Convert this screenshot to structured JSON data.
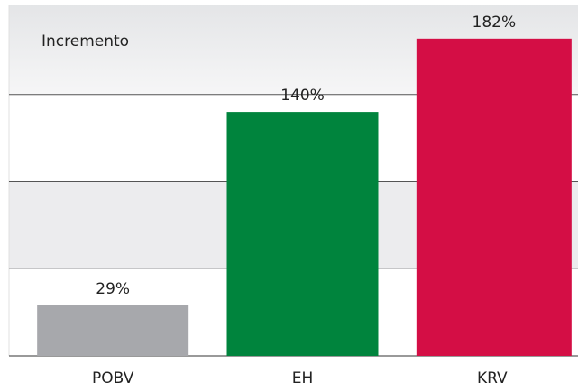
{
  "chart_data": {
    "type": "bar",
    "annotation": "Incremento",
    "categories": [
      "POBV",
      "EH",
      "KRV"
    ],
    "values": [
      29,
      140,
      182
    ],
    "value_labels": [
      "29%",
      "140%",
      "182%"
    ],
    "colors": [
      "#a7a8ac",
      "#00843d",
      "#d40e45"
    ],
    "ylim": [
      0,
      200
    ],
    "yticks": [
      0,
      50,
      100,
      150,
      200
    ],
    "grid": true
  }
}
